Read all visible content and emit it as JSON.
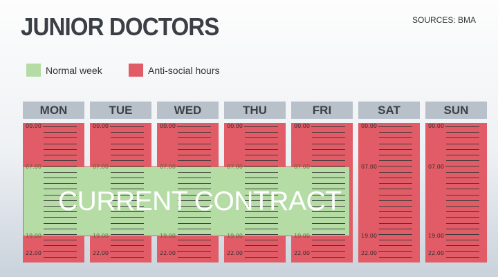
{
  "header": {
    "title": "JUNIOR DOCTORS",
    "sources": "SOURCES: BMA"
  },
  "legend": [
    {
      "label": "Normal week",
      "color": "#b5dca5"
    },
    {
      "label": "Anti-social hours",
      "color": "#e15c66"
    }
  ],
  "days": [
    "MON",
    "TUE",
    "WED",
    "THU",
    "FRI",
    "SAT",
    "SUN"
  ],
  "time_labels": [
    "00.00",
    "07.00",
    "19.00",
    "22.00"
  ],
  "overlay": {
    "label": "CURRENT CONTRACT",
    "from": "07.00",
    "to": "19.00",
    "days": [
      "MON",
      "TUE",
      "WED",
      "THU",
      "FRI"
    ]
  },
  "colors": {
    "normal": "#b5dca5",
    "anti_social": "#e15c66",
    "header_bg": "#b8c1ca"
  }
}
